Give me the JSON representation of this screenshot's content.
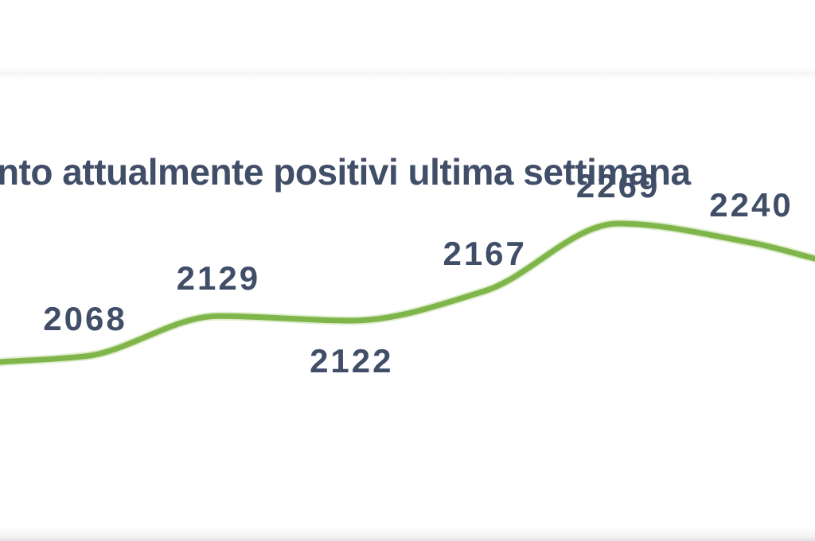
{
  "page": {
    "background_color": "#ffffff",
    "divider_color": "#e6e6ea"
  },
  "chart": {
    "title": "nto attualmente positivi ultima settimana",
    "title_color": "#414e68",
    "label_color": "#414e68",
    "line_color": "#7fb54a",
    "line_soft_color": "#aed184"
  },
  "chart_data": {
    "type": "line",
    "title": "nto attualmente positivi ultima settimana",
    "values": [
      2068,
      2129,
      2122,
      2167,
      2269,
      2240
    ],
    "point_labels": [
      "2068",
      "2129",
      "2122",
      "2167",
      "2269",
      "2240"
    ],
    "series": [
      {
        "name": "attualmente positivi",
        "values": [
          2068,
          2129,
          2122,
          2167,
          2269,
          2240
        ]
      }
    ],
    "curve": "smooth",
    "line_color": "#7fb54a",
    "axes_visible": false,
    "grid": false,
    "legend": false,
    "data_labels_shown": true
  }
}
